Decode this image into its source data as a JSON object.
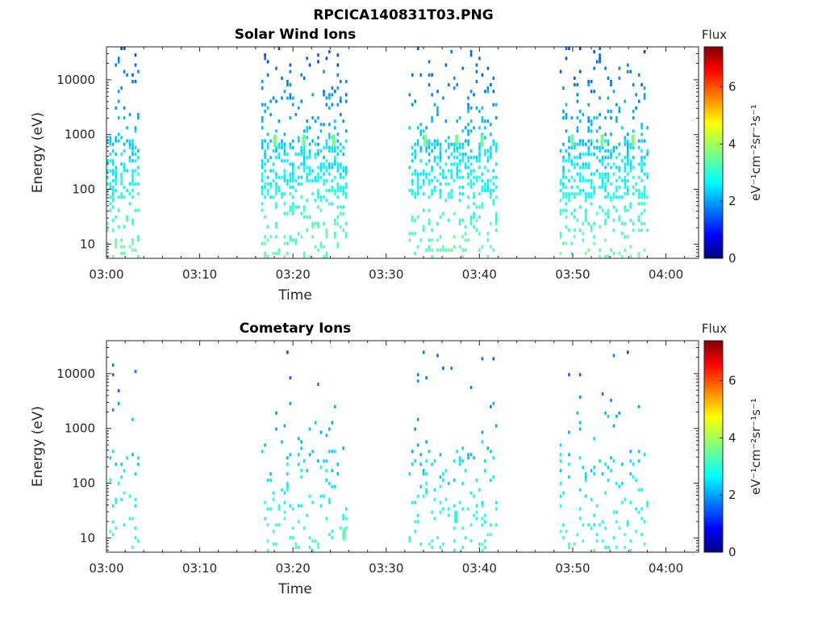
{
  "figure_title": "RPCICA140831T03.PNG",
  "colormap": [
    "#00007f",
    "#0000ff",
    "#007fff",
    "#00ffff",
    "#7fff7f",
    "#ffff00",
    "#ff7f00",
    "#ff0000",
    "#7f0000"
  ],
  "chart_data": [
    {
      "type": "heatmap",
      "title": "Solar Wind Ions",
      "xlabel": "Time",
      "ylabel": "Energy (eV)",
      "x_ticks": [
        "03:00",
        "03:10",
        "03:20",
        "03:30",
        "03:40",
        "03:50",
        "04:00"
      ],
      "x_range_minutes": [
        0,
        63.5
      ],
      "y_scale": "log",
      "y_ticks": [
        10,
        100,
        1000,
        10000
      ],
      "y_range": [
        5.5,
        40000
      ],
      "colorbar": {
        "title": "Flux",
        "label": "eV⁻¹cm⁻²sr⁻¹s⁻¹",
        "range": [
          0,
          7.4
        ],
        "ticks": [
          0,
          2,
          4,
          6
        ]
      },
      "data_intervals_minutes": [
        [
          0,
          3.3
        ],
        [
          16.6,
          25.8
        ],
        [
          32.4,
          41.8
        ],
        [
          48.6,
          58
        ]
      ],
      "data_energy_range": [
        5.5,
        40000
      ],
      "typical_flux": [
        1.5,
        3.5
      ],
      "features": [
        {
          "time_minutes": 17.9,
          "energy": 800,
          "flux": 3.6
        },
        {
          "time_minutes": 21.0,
          "energy": 800,
          "flux": 3.5
        },
        {
          "time_minutes": 24.2,
          "energy": 800,
          "flux": 3.6
        },
        {
          "time_minutes": 34.0,
          "energy": 800,
          "flux": 3.7
        },
        {
          "time_minutes": 37.4,
          "energy": 800,
          "flux": 3.6
        },
        {
          "time_minutes": 40.1,
          "energy": 800,
          "flux": 3.5
        },
        {
          "time_minutes": 49.8,
          "energy": 800,
          "flux": 3.6
        },
        {
          "time_minutes": 53.0,
          "energy": 800,
          "flux": 3.6
        },
        {
          "time_minutes": 56.3,
          "energy": 800,
          "flux": 3.7
        }
      ]
    },
    {
      "type": "heatmap",
      "title": "Cometary Ions",
      "xlabel": "Time",
      "ylabel": "Energy (eV)",
      "x_ticks": [
        "03:00",
        "03:10",
        "03:20",
        "03:30",
        "03:40",
        "03:50",
        "04:00"
      ],
      "x_range_minutes": [
        0,
        63.5
      ],
      "y_scale": "log",
      "y_ticks": [
        10,
        100,
        1000,
        10000
      ],
      "y_range": [
        5.5,
        40000
      ],
      "colorbar": {
        "title": "Flux",
        "label": "eV⁻¹cm⁻²sr⁻¹s⁻¹",
        "range": [
          0,
          7.4
        ],
        "ticks": [
          0,
          2,
          4,
          6
        ]
      },
      "data_intervals_minutes": [
        [
          0,
          3.3
        ],
        [
          16.6,
          25.8
        ],
        [
          32.4,
          41.8
        ],
        [
          48.6,
          58
        ]
      ],
      "data_energy_range": [
        5.5,
        30000
      ],
      "typical_flux": [
        1.6,
        3.2
      ],
      "features": [
        {
          "time_minutes": 25.3,
          "energy": 12,
          "flux": 3.4
        },
        {
          "time_minutes": 37.3,
          "energy": 25,
          "flux": 3.0
        }
      ]
    }
  ]
}
